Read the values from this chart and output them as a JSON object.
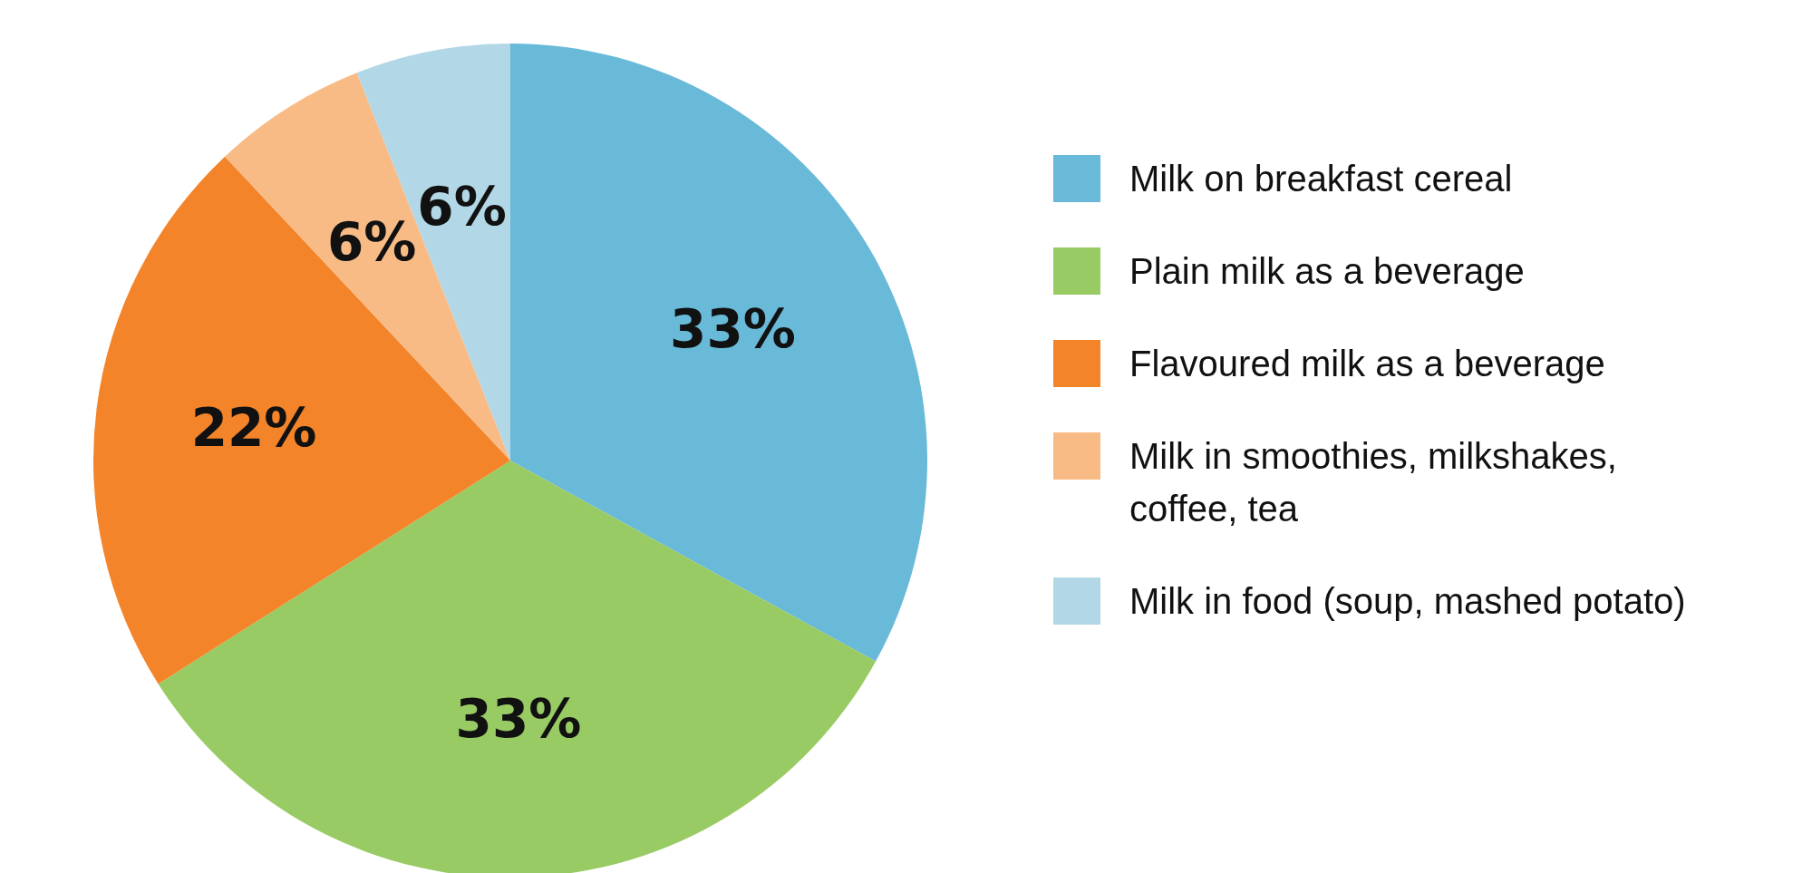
{
  "chart_data": {
    "type": "pie",
    "categories": [
      "Milk on breakfast cereal",
      "Plain milk as a beverage",
      "Flavoured milk as a beverage",
      "Milk in smoothies, milkshakes, coffee, tea",
      "Milk in food (soup, mashed potato)"
    ],
    "values": [
      33,
      33,
      22,
      6,
      6
    ],
    "colors": [
      "#69b9d8",
      "#98cb63",
      "#f3842a",
      "#f9bb86",
      "#b2d7e6"
    ],
    "value_labels": [
      "33%",
      "33%",
      "22%",
      "6%",
      "6%"
    ],
    "legend": "right"
  }
}
